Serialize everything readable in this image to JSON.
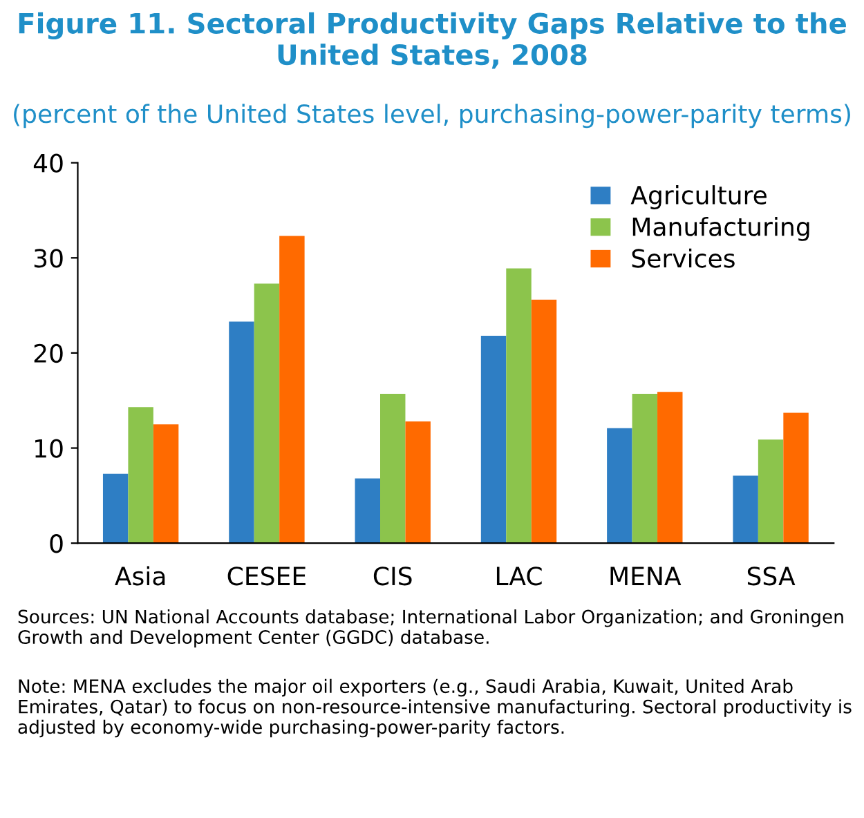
{
  "chart_data": {
    "type": "bar",
    "title": "Figure 11. Sectoral Productivity Gaps Relative to the United States, 2008",
    "subtitle": "(percent of the United States level, purchasing-power-parity terms)",
    "categories": [
      "Asia",
      "CESEE",
      "CIS",
      "LAC",
      "MENA",
      "SSA"
    ],
    "series": [
      {
        "name": "Agriculture",
        "color": "#2e7ec4",
        "values": [
          7.3,
          23.3,
          6.8,
          21.8,
          12.1,
          7.1
        ]
      },
      {
        "name": "Manufacturing",
        "color": "#8cc44c",
        "values": [
          14.3,
          27.3,
          15.7,
          28.9,
          15.7,
          10.9
        ]
      },
      {
        "name": "Services",
        "color": "#ff6a00",
        "values": [
          12.5,
          32.3,
          12.8,
          25.6,
          15.9,
          13.7
        ]
      }
    ],
    "ylim": [
      0,
      40
    ],
    "yticks": [
      0,
      10,
      20,
      30,
      40
    ],
    "grid": false,
    "legend": "top right",
    "annotations": [
      "Sources: UN National Accounts database; International Labor Organization; and Groningen Growth and Development Center (GGDC) database.",
      "Note: MENA excludes the major oil exporters (e.g., Saudi Arabia, Kuwait, United Arab Emirates, Qatar) to focus on non-resource-intensive manufacturing. Sectoral productivity is adjusted by economy-wide purchasing-power-parity factors."
    ]
  }
}
